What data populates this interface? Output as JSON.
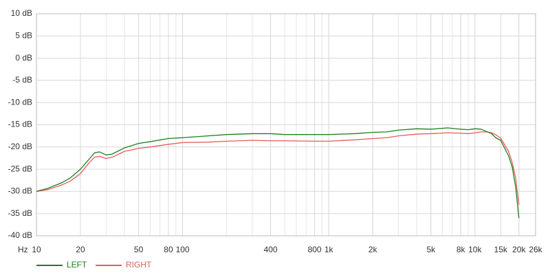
{
  "chart_data": {
    "type": "line",
    "x_label": "Hz",
    "log_x": true,
    "grid": true,
    "legend": "bottom-left",
    "x": [
      10,
      12,
      15,
      17,
      20,
      23,
      25,
      27,
      30,
      33,
      40,
      50,
      60,
      80,
      100,
      150,
      200,
      300,
      400,
      500,
      800,
      1000,
      1500,
      2000,
      2500,
      3000,
      4000,
      5000,
      6500,
      8000,
      9000,
      10000,
      11000,
      12000,
      13000,
      14000,
      15000,
      17000,
      18000,
      19000,
      20000
    ],
    "series": [
      {
        "name": "LEFT",
        "color": "#1e7e1e",
        "values": [
          -30,
          -29.3,
          -28,
          -27,
          -25,
          -22.7,
          -21.3,
          -21.1,
          -21.8,
          -21.6,
          -20.2,
          -19.2,
          -18.8,
          -18.1,
          -17.9,
          -17.5,
          -17.2,
          -17.0,
          -17.0,
          -17.2,
          -17.2,
          -17.2,
          -17.0,
          -16.7,
          -16.6,
          -16.2,
          -15.9,
          -16.0,
          -15.7,
          -16.0,
          -16.1,
          -15.9,
          -16.0,
          -16.5,
          -17.0,
          -18.0,
          -18.5,
          -22,
          -24.5,
          -29,
          -36
        ]
      },
      {
        "name": "RIGHT",
        "color": "#e85a5a",
        "values": [
          -30,
          -29.6,
          -28.5,
          -27.7,
          -26,
          -23.5,
          -22.3,
          -22.1,
          -22.6,
          -22.3,
          -21,
          -20.3,
          -20,
          -19.4,
          -19,
          -18.9,
          -18.7,
          -18.5,
          -18.6,
          -18.6,
          -18.7,
          -18.7,
          -18.4,
          -18.1,
          -17.9,
          -17.5,
          -17.1,
          -17.0,
          -16.8,
          -16.9,
          -17.0,
          -16.8,
          -16.6,
          -16.6,
          -16.8,
          -17.3,
          -18,
          -21,
          -23.5,
          -27,
          -33
        ]
      }
    ],
    "xlim": [
      10,
      26000
    ],
    "xticks": [
      10,
      20,
      50,
      80,
      100,
      400,
      800,
      {
        "value": 1000,
        "label": "1k"
      },
      {
        "value": 2000,
        "label": "2k"
      },
      {
        "value": 5000,
        "label": "5k"
      },
      {
        "value": 8000,
        "label": "8k"
      },
      {
        "value": 10000,
        "label": "10k"
      },
      {
        "value": 15000,
        "label": "15k"
      },
      {
        "value": 20000,
        "label": "20k"
      },
      {
        "value": 26000,
        "label": "26k"
      }
    ],
    "ylim": [
      -40,
      10
    ],
    "yticks": [
      {
        "value": 10,
        "label": "10 dB"
      },
      {
        "value": 5,
        "label": "5 dB"
      },
      {
        "value": 0,
        "label": "0 dB"
      },
      {
        "value": -5,
        "label": "-5 dB"
      },
      {
        "value": -10,
        "label": "-10 dB"
      },
      {
        "value": -15,
        "label": "-15 dB"
      },
      {
        "value": -20,
        "label": "-20 dB"
      },
      {
        "value": -25,
        "label": "-25 dB"
      },
      {
        "value": -30,
        "label": "-30 dB"
      },
      {
        "value": -35,
        "label": "-35 dB"
      },
      {
        "value": -40,
        "label": "-40 dB"
      }
    ]
  }
}
